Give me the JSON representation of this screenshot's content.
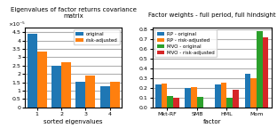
{
  "chart_data": [
    {
      "type": "bar",
      "title": "Eigenvalues of factor returns covariance matrix",
      "xlabel": "sorted eigenvalues",
      "annotation": "×10⁻⁵",
      "categories": [
        "1",
        "2",
        "3",
        "4"
      ],
      "series": [
        {
          "name": "original",
          "values": [
            4.4,
            2.48,
            1.52,
            1.28
          ]
        },
        {
          "name": "risk-adjusted",
          "values": [
            3.32,
            2.72,
            1.9,
            1.56
          ]
        }
      ],
      "ylim": [
        0,
        4.8
      ],
      "yticks": [
        0,
        0.5,
        1,
        1.5,
        2,
        2.5,
        3,
        3.5,
        4,
        4.5
      ],
      "grid": true,
      "legend": "upper right"
    },
    {
      "type": "bar",
      "title": "Factor weights - full period, full hindsight",
      "xlabel": "factor",
      "categories": [
        "Mkt-RF",
        "SMB",
        "HML",
        "Mom"
      ],
      "series": [
        {
          "name": "RP - original",
          "values": [
            0.235,
            0.195,
            0.235,
            0.345
          ]
        },
        {
          "name": "RP - risk-adjusted",
          "values": [
            0.245,
            0.21,
            0.255,
            0.3
          ]
        },
        {
          "name": "MVO - original",
          "values": [
            0.115,
            0.105,
            0.095,
            0.78
          ]
        },
        {
          "name": "MVO - risk-adjusted",
          "values": [
            0.1,
            0.0,
            0.185,
            0.72
          ]
        }
      ],
      "ylim": [
        0,
        0.82
      ],
      "yticks": [
        {
          "value": 0,
          "label": "0.0"
        },
        0.1,
        0.2,
        0.3,
        0.4,
        0.5,
        0.6,
        0.7,
        0.8
      ],
      "grid": true,
      "legend": "upper left"
    }
  ]
}
